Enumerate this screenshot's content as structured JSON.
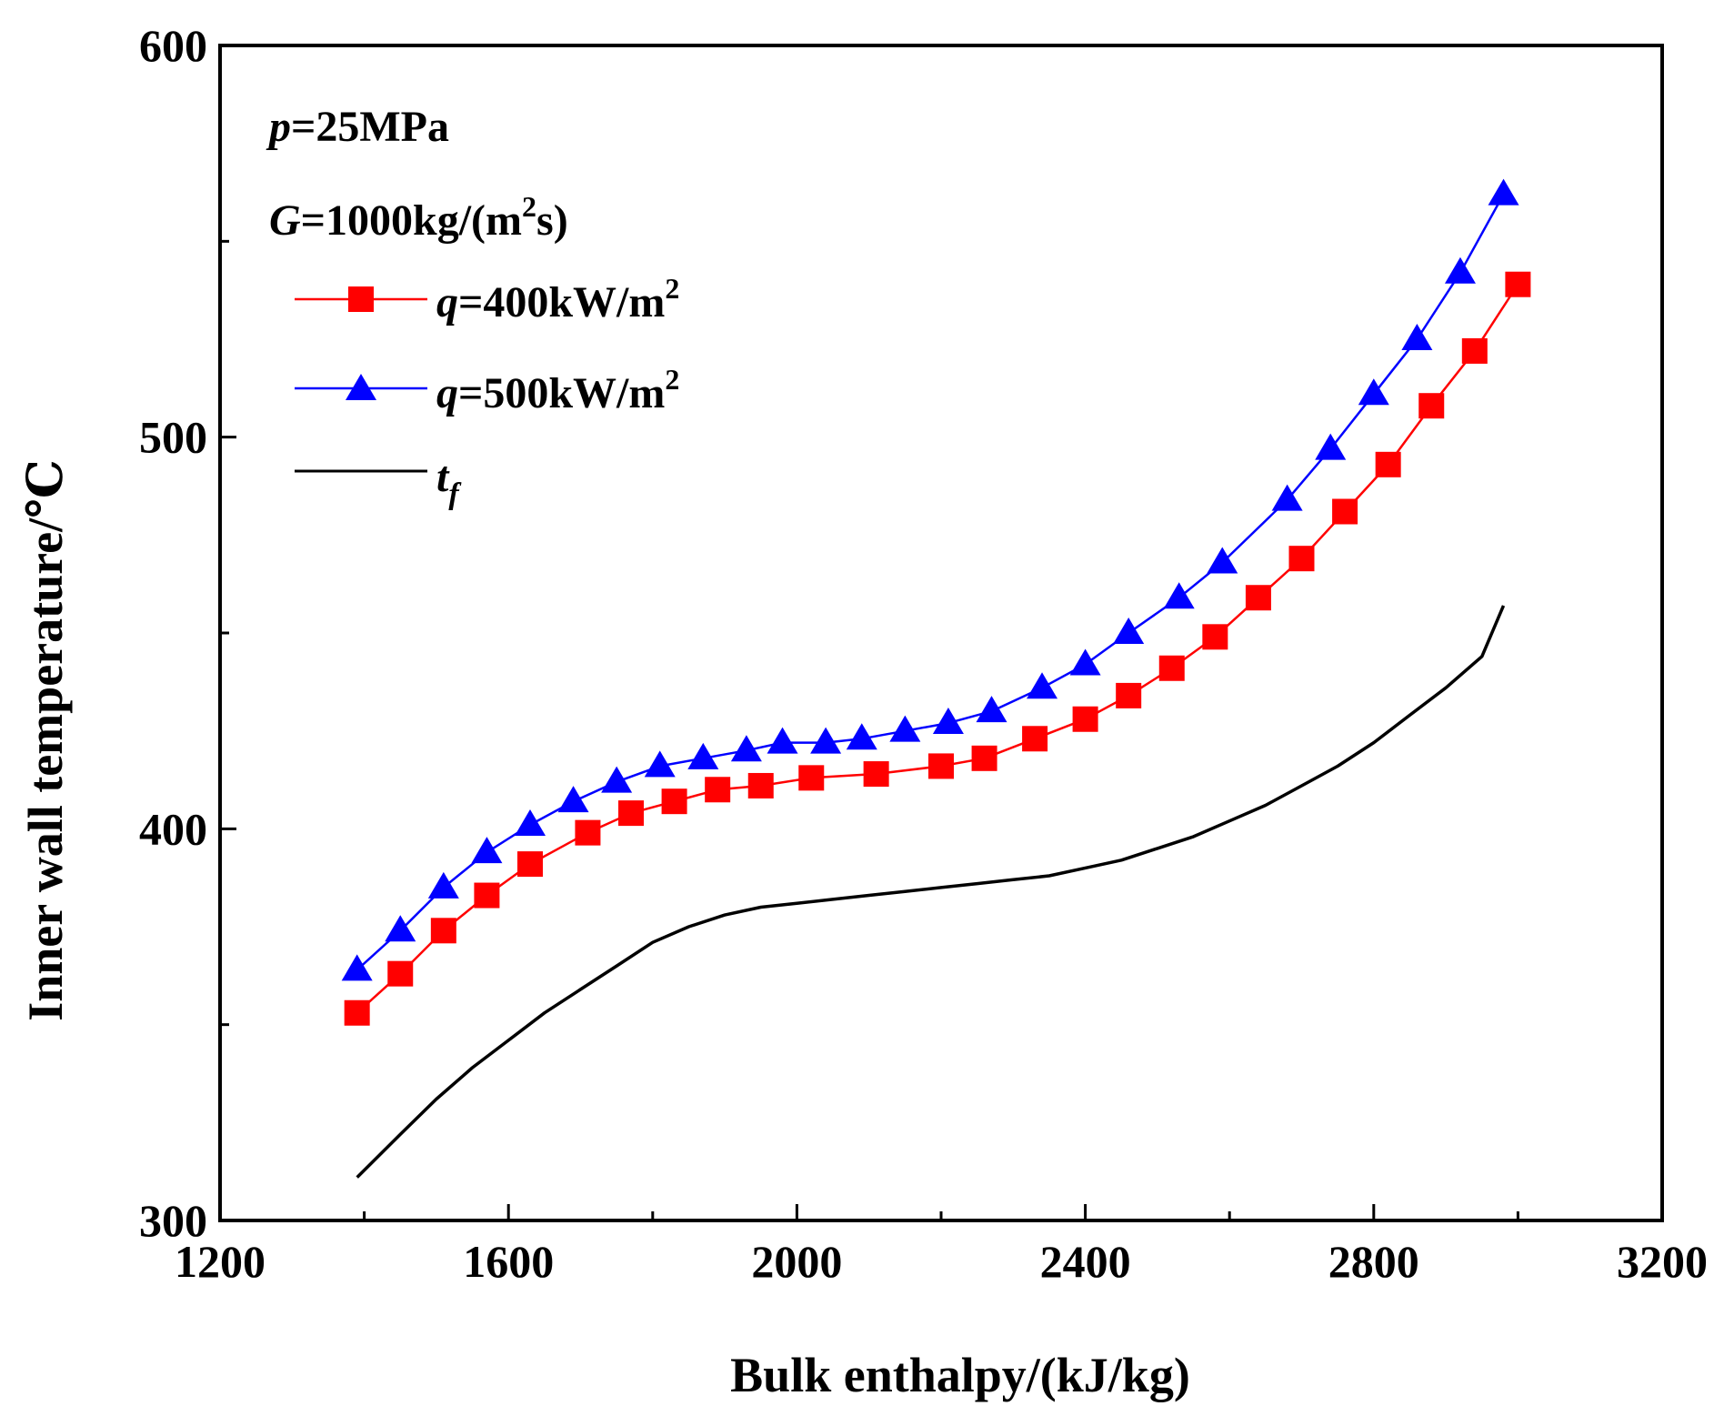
{
  "chart_data": {
    "type": "line",
    "title": "",
    "xlabel": "Bulk enthalpy/(kJ/kg)",
    "ylabel": "Inner wall temperature/℃",
    "xlim": [
      1200,
      3200
    ],
    "ylim": [
      300,
      600
    ],
    "xticks": [
      1200,
      1600,
      2000,
      2400,
      2800,
      3200
    ],
    "yticks": [
      300,
      400,
      500,
      600
    ],
    "x_minor_step": 200,
    "y_minor_step": 50,
    "grid": false,
    "legend_position": "top-left",
    "annotations": {
      "pressure": {
        "var": "p",
        "text": "=25MPa"
      },
      "mass_flux": {
        "var": "G",
        "text": "=1000kg/(m",
        "sup": "2",
        "tail": "s)"
      }
    },
    "series": [
      {
        "name": "q=400kW/m2",
        "legend": {
          "var": "q",
          "text": "=400kW/m",
          "sup": "2"
        },
        "color": "#ff0000",
        "marker": "square",
        "x": [
          1390,
          1450,
          1510,
          1570,
          1630,
          1710,
          1770,
          1830,
          1890,
          1950,
          2020,
          2110,
          2200,
          2260,
          2330,
          2400,
          2460,
          2520,
          2580,
          2640,
          2700,
          2760,
          2820,
          2880,
          2940,
          3000
        ],
        "y": [
          353,
          363,
          374,
          383,
          391,
          399,
          404,
          407,
          410,
          411,
          413,
          414,
          416,
          418,
          423,
          428,
          434,
          441,
          449,
          459,
          469,
          481,
          493,
          508,
          522,
          539
        ]
      },
      {
        "name": "q=500kW/m2",
        "legend": {
          "var": "q",
          "text": "=500kW/m",
          "sup": "2"
        },
        "color": "#0000ff",
        "marker": "triangle",
        "x": [
          1390,
          1450,
          1510,
          1570,
          1630,
          1690,
          1750,
          1810,
          1870,
          1930,
          1980,
          2040,
          2090,
          2150,
          2210,
          2270,
          2340,
          2400,
          2460,
          2530,
          2590,
          2680,
          2740,
          2800,
          2860,
          2920,
          2980
        ],
        "y": [
          364,
          374,
          385,
          394,
          401,
          407,
          412,
          416,
          418,
          420,
          422,
          422,
          423,
          425,
          427,
          430,
          436,
          442,
          450,
          459,
          468,
          484,
          497,
          511,
          525,
          542,
          562
        ]
      },
      {
        "name": "t_f",
        "legend": {
          "var": "t",
          "sub": "f"
        },
        "color": "#000000",
        "marker": "none",
        "x": [
          1390,
          1450,
          1500,
          1550,
          1600,
          1650,
          1700,
          1750,
          1800,
          1850,
          1900,
          1950,
          2000,
          2050,
          2100,
          2150,
          2200,
          2250,
          2300,
          2350,
          2400,
          2450,
          2500,
          2550,
          2600,
          2650,
          2700,
          2750,
          2800,
          2850,
          2900,
          2950,
          2980
        ],
        "y": [
          311,
          322,
          331,
          339,
          346,
          353,
          359,
          365,
          371,
          375,
          378,
          380,
          381,
          382,
          383,
          384,
          385,
          386,
          387,
          388,
          390,
          392,
          395,
          398,
          402,
          406,
          411,
          416,
          422,
          429,
          436,
          444,
          457
        ]
      }
    ]
  }
}
